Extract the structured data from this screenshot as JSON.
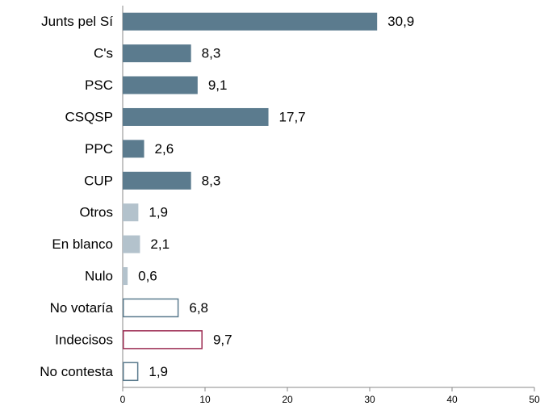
{
  "chart_data": {
    "type": "bar",
    "orientation": "horizontal",
    "categories": [
      "Junts pel Sí",
      "C's",
      "PSC",
      "CSQSP",
      "PPC",
      "CUP",
      "Otros",
      "En blanco",
      "Nulo",
      "No votaría",
      "Indecisos",
      "No contesta"
    ],
    "values": [
      30.9,
      8.3,
      9.1,
      17.7,
      2.6,
      8.3,
      1.9,
      2.1,
      0.6,
      6.8,
      9.7,
      1.9
    ],
    "value_labels": [
      "30,9",
      "8,3",
      "9,1",
      "17,7",
      "2,6",
      "8,3",
      "1,9",
      "2,1",
      "0,6",
      "6,8",
      "9,7",
      "1,9"
    ],
    "colors": [
      "#5b7b8e",
      "#5b7b8e",
      "#5b7b8e",
      "#5b7b8e",
      "#5b7b8e",
      "#5b7b8e",
      "#b3c2cc",
      "#b3c2cc",
      "#b3c2cc",
      "#5b7b8e",
      "#9c2b52",
      "#5b7b8e"
    ],
    "filled": [
      true,
      true,
      true,
      true,
      true,
      true,
      true,
      true,
      true,
      false,
      false,
      false
    ],
    "xlim": [
      0,
      50
    ],
    "xticks": [
      0,
      10,
      20,
      30,
      40,
      50
    ]
  }
}
